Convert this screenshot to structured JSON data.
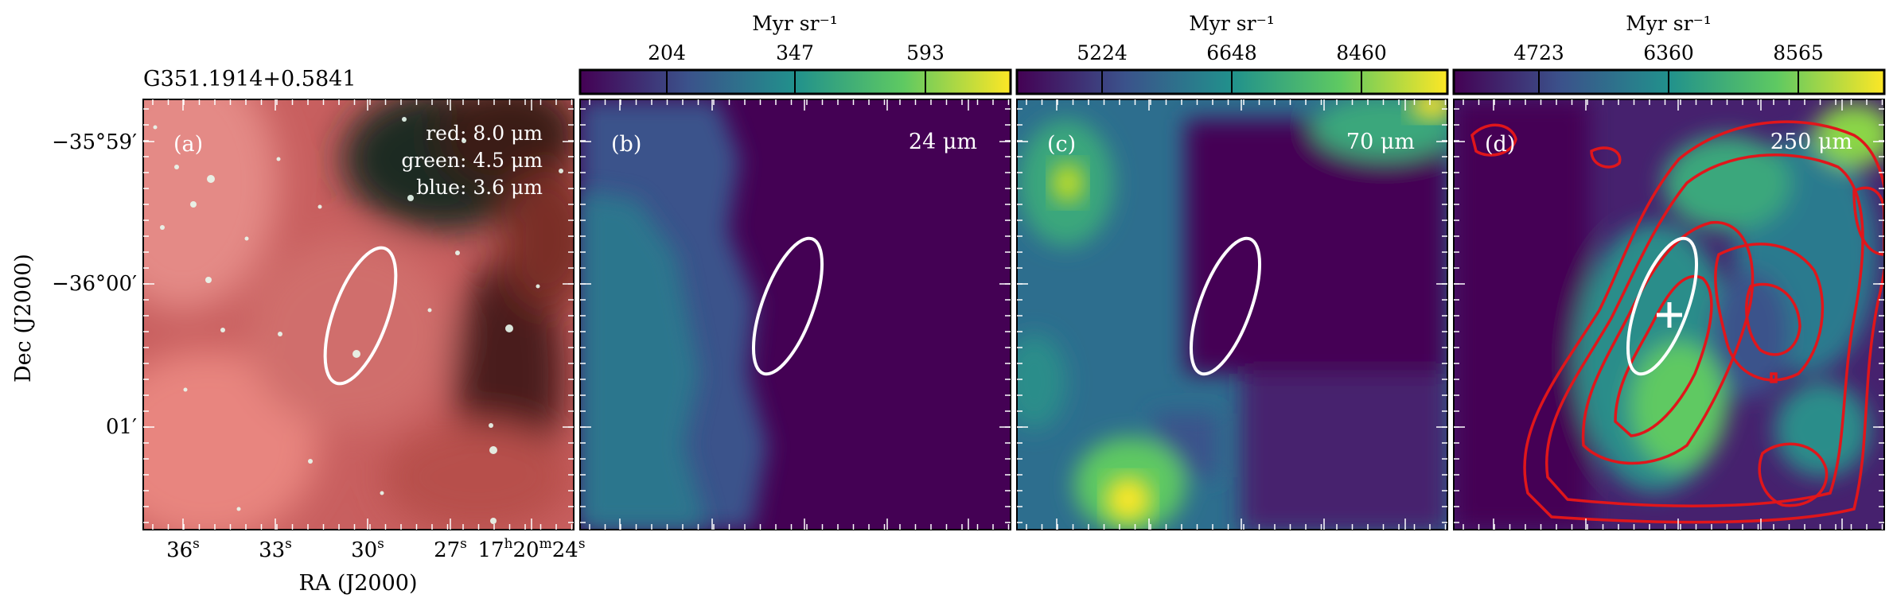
{
  "source_name": "G351.1914+0.5841",
  "axes": {
    "xlabel": "RA (J2000)",
    "ylabel": "Dec (J2000)",
    "ra_ticks": [
      {
        "main": "36",
        "sup": "s"
      },
      {
        "main": "33",
        "sup": "s"
      },
      {
        "main": "30",
        "sup": "s"
      },
      {
        "main": "27",
        "sup": "s"
      },
      {
        "main": "17",
        "sup": "h",
        "main2": "20",
        "sup2": "m",
        "main3": "24",
        "sup3": "s"
      }
    ],
    "dec_ticks": [
      "−35°59′",
      "−36°00′",
      "01′"
    ]
  },
  "panels": [
    {
      "id": "a",
      "tag": "(a)",
      "legend": [
        "red: 8.0 μm",
        "green: 4.5 μm",
        "blue: 3.6 μm"
      ]
    },
    {
      "id": "b",
      "tag": "(b)",
      "band": "24 μm"
    },
    {
      "id": "c",
      "tag": "(c)",
      "band": "70 μm"
    },
    {
      "id": "d",
      "tag": "(d)",
      "band": "250 μm"
    }
  ],
  "colorbars": [
    {
      "panel": "b",
      "unit": "Myr sr⁻¹",
      "ticks": [
        "204",
        "347",
        "593"
      ]
    },
    {
      "panel": "c",
      "unit": "Myr sr⁻¹",
      "ticks": [
        "5224",
        "6648",
        "8460"
      ]
    },
    {
      "panel": "d",
      "unit": "Myr sr⁻¹",
      "ticks": [
        "4723",
        "6360",
        "8565"
      ]
    }
  ],
  "colors": {
    "ellipse": "#ffffff",
    "contour": "#e0161b",
    "colormap": [
      "#440154",
      "#3b528b",
      "#21918c",
      "#5ec962",
      "#fde725"
    ]
  }
}
